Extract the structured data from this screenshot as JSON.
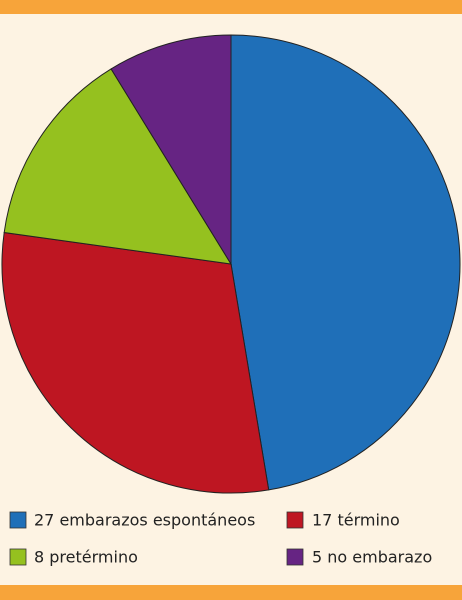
{
  "chart_data": {
    "type": "pie",
    "categories": [
      "27 embarazos espontáneos",
      "17 término",
      "8 pretérmino",
      "5 no embarazo"
    ],
    "values": [
      27,
      17,
      8,
      5
    ],
    "colors": [
      "#1f6fb8",
      "#be1622",
      "#95c11f",
      "#662483"
    ]
  }
}
